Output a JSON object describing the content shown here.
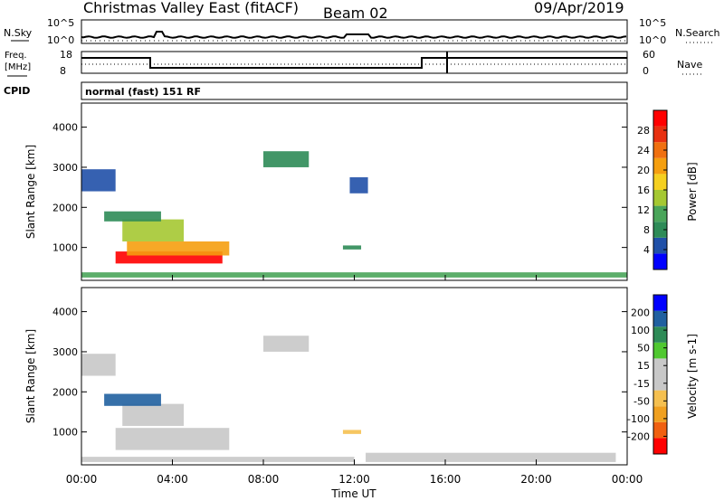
{
  "header": {
    "title": "Christmas Valley East (fitACF)",
    "beam": "Beam 02",
    "date": "09/Apr/2019"
  },
  "aux_panels": {
    "nsky": {
      "label": "N.Sky",
      "y_top": "10^5",
      "y_bottom": "10^0",
      "right_label": "N.Search",
      "r_top": "10^5",
      "r_bottom": "10^0"
    },
    "freq": {
      "label_line1": "Freq.",
      "label_line2": "[MHz]",
      "y_top": "18",
      "y_bottom": "8",
      "right_label": "Nave",
      "r_top": "60",
      "r_bottom": "0"
    },
    "cpid": {
      "label": "CPID",
      "value": "normal (fast) 151 RF"
    }
  },
  "colors": {
    "power_scale": [
      "#0000ff",
      "#2050a8",
      "#2e8b57",
      "#4aa55a",
      "#a5c832",
      "#f5d020",
      "#f59f10",
      "#f07010",
      "#e83010",
      "#ff0000"
    ],
    "velocity_scale": [
      "#ff0000",
      "#f06010",
      "#f0a020",
      "#f5c050",
      "#c8c8c8",
      "#c8c8c8",
      "#50c830",
      "#2e8b57",
      "#2060a0",
      "#0000ff"
    ]
  },
  "chart_data": [
    {
      "type": "heatmap",
      "title": "Power",
      "xlabel": "Time UT",
      "ylabel": "Slant Range [km]",
      "xlim_hours": [
        0,
        24
      ],
      "ylim_km": [
        180,
        4600
      ],
      "x_ticks": [
        "00:00",
        "04:00",
        "08:00",
        "12:00",
        "16:00",
        "20:00",
        "00:00"
      ],
      "y_ticks": [
        "1000",
        "2000",
        "3000",
        "4000"
      ],
      "colorbar": {
        "label": "Power [dB]",
        "ticks": [
          "28",
          "24",
          "20",
          "16",
          "12",
          "8",
          "4"
        ],
        "range": [
          0,
          30
        ]
      },
      "regions": [
        {
          "t0": 1.5,
          "t1": 6.2,
          "r0": 600,
          "r1": 900,
          "value": 27
        },
        {
          "t0": 2.0,
          "t1": 6.5,
          "r0": 800,
          "r1": 1150,
          "value": 20
        },
        {
          "t0": 1.8,
          "t1": 4.5,
          "r0": 1150,
          "r1": 1700,
          "value": 12
        },
        {
          "t0": 1.0,
          "t1": 3.5,
          "r0": 1650,
          "r1": 1900,
          "value": 6
        },
        {
          "t0": 0.0,
          "t1": 1.5,
          "r0": 2400,
          "r1": 2950,
          "value": 5
        },
        {
          "t0": 8.0,
          "t1": 10.0,
          "r0": 3000,
          "r1": 3400,
          "value": 8
        },
        {
          "t0": 11.8,
          "t1": 12.6,
          "r0": 2350,
          "r1": 2750,
          "value": 5
        },
        {
          "t0": 11.5,
          "t1": 12.3,
          "r0": 950,
          "r1": 1050,
          "value": 6
        },
        {
          "t0": 0.0,
          "t1": 24.0,
          "r0": 250,
          "r1": 380,
          "value": 10
        }
      ]
    },
    {
      "type": "heatmap",
      "title": "Velocity",
      "xlabel": "Time UT",
      "ylabel": "Slant Range [km]",
      "xlim_hours": [
        0,
        24
      ],
      "ylim_km": [
        180,
        4600
      ],
      "x_ticks": [
        "00:00",
        "04:00",
        "08:00",
        "12:00",
        "16:00",
        "20:00",
        "00:00"
      ],
      "y_ticks": [
        "1000",
        "2000",
        "3000",
        "4000"
      ],
      "colorbar": {
        "label": "Velocity [m s-1]",
        "ticks": [
          "200",
          "100",
          "50",
          "15",
          "-15",
          "-50",
          "-100",
          "-200"
        ],
        "range": [
          -250,
          250
        ]
      },
      "regions": [
        {
          "t0": 1.5,
          "t1": 6.5,
          "r0": 550,
          "r1": 1100,
          "value": 0
        },
        {
          "t0": 1.8,
          "t1": 4.5,
          "r0": 1150,
          "r1": 1700,
          "value": 40
        },
        {
          "t0": 1.0,
          "t1": 3.5,
          "r0": 1650,
          "r1": 1950,
          "value": 180
        },
        {
          "t0": 0.0,
          "t1": 1.5,
          "r0": 2400,
          "r1": 2950,
          "value": 0
        },
        {
          "t0": 8.0,
          "t1": 10.0,
          "r0": 3000,
          "r1": 3400,
          "value": 20
        },
        {
          "t0": 11.5,
          "t1": 12.3,
          "r0": 950,
          "r1": 1050,
          "value": -60
        },
        {
          "t0": 12.5,
          "t1": 23.5,
          "r0": 250,
          "r1": 480,
          "value": -30
        },
        {
          "t0": 0.0,
          "t1": 12.0,
          "r0": 250,
          "r1": 380,
          "value": -20
        }
      ]
    }
  ]
}
